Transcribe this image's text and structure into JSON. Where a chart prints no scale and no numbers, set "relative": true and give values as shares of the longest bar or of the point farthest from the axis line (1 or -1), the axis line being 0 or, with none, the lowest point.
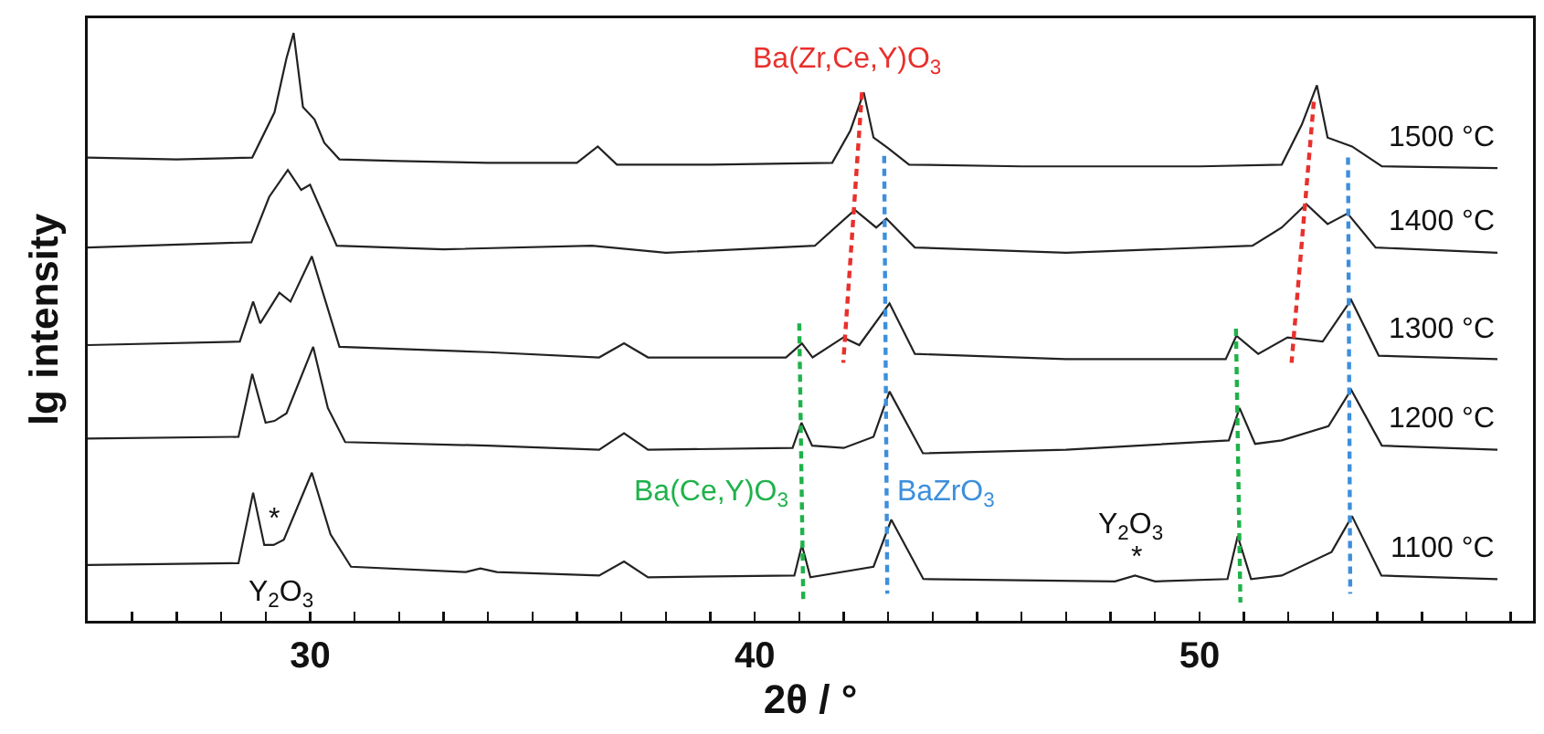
{
  "chart_data": {
    "type": "line",
    "relative": true,
    "xlabel": "2θ / °",
    "ylabel": "lg intensity",
    "xlim": [
      25,
      57.5
    ],
    "xticks": [
      {
        "value": 26,
        "label": null
      },
      {
        "value": 27,
        "label": null
      },
      {
        "value": 28,
        "label": null
      },
      {
        "value": 29,
        "label": null
      },
      30,
      {
        "value": 31,
        "label": null
      },
      {
        "value": 32,
        "label": null
      },
      {
        "value": 33,
        "label": null
      },
      {
        "value": 34,
        "label": null
      },
      {
        "value": 35,
        "label": null
      },
      {
        "value": 36,
        "label": null
      },
      {
        "value": 37,
        "label": null
      },
      {
        "value": 38,
        "label": null
      },
      {
        "value": 39,
        "label": null
      },
      40,
      {
        "value": 41,
        "label": null
      },
      {
        "value": 42,
        "label": null
      },
      {
        "value": 43,
        "label": null
      },
      {
        "value": 44,
        "label": null
      },
      {
        "value": 45,
        "label": null
      },
      {
        "value": 46,
        "label": null
      },
      {
        "value": 47,
        "label": null
      },
      {
        "value": 48,
        "label": null
      },
      {
        "value": 49,
        "label": null
      },
      50,
      {
        "value": 51,
        "label": null
      },
      {
        "value": 52,
        "label": null
      },
      {
        "value": 53,
        "label": null
      },
      {
        "value": 54,
        "label": null
      },
      {
        "value": 55,
        "label": null
      },
      {
        "value": 56,
        "label": null
      },
      {
        "value": 57,
        "label": null
      }
    ],
    "grid": false,
    "legend": false,
    "marker": "none",
    "line_style": "solid",
    "series": [
      {
        "name": "1500 °C",
        "color": "#222222",
        "x": [
          25,
          27,
          28.7,
          29.2,
          29.47,
          29.63,
          29.84,
          30.1,
          30.32,
          30.66,
          32,
          34,
          36,
          36.47,
          36.9,
          39,
          41.74,
          42.15,
          42.45,
          42.67,
          43,
          43.47,
          46,
          50,
          51.85,
          52.3,
          52.64,
          52.88,
          53.43,
          54.1,
          56.7
        ],
        "values": [
          0.788,
          0.785,
          0.788,
          0.865,
          0.957,
          1.0,
          0.874,
          0.853,
          0.813,
          0.785,
          0.782,
          0.779,
          0.779,
          0.807,
          0.776,
          0.776,
          0.779,
          0.834,
          0.899,
          0.822,
          0.804,
          0.776,
          0.773,
          0.773,
          0.776,
          0.844,
          0.911,
          0.822,
          0.807,
          0.773,
          0.77
        ]
      },
      {
        "name": "1400 °C",
        "color": "#222222",
        "x": [
          25,
          28.68,
          29.08,
          29.5,
          29.8,
          30,
          30.6,
          33,
          36.34,
          38,
          41.35,
          42.25,
          42.73,
          42.96,
          43.6,
          47,
          51.19,
          51.85,
          52.4,
          52.88,
          53.33,
          53.96,
          56.7
        ],
        "values": [
          0.635,
          0.644,
          0.721,
          0.767,
          0.733,
          0.742,
          0.638,
          0.632,
          0.638,
          0.626,
          0.638,
          0.699,
          0.669,
          0.684,
          0.635,
          0.626,
          0.638,
          0.669,
          0.709,
          0.675,
          0.693,
          0.635,
          0.626
        ]
      },
      {
        "name": "1300 °C",
        "color": "#222222",
        "x": [
          25,
          28.42,
          28.72,
          28.88,
          29.31,
          29.56,
          30.04,
          30.66,
          34,
          36.5,
          37.06,
          37.6,
          40.7,
          41.06,
          41.3,
          41.99,
          42.35,
          43.03,
          43.6,
          47,
          50.59,
          50.83,
          51.32,
          51.98,
          52.77,
          53.41,
          54.03,
          56.7
        ],
        "values": [
          0.469,
          0.475,
          0.543,
          0.506,
          0.558,
          0.543,
          0.62,
          0.466,
          0.457,
          0.448,
          0.472,
          0.448,
          0.448,
          0.472,
          0.448,
          0.482,
          0.469,
          0.54,
          0.454,
          0.445,
          0.445,
          0.485,
          0.454,
          0.482,
          0.475,
          0.546,
          0.451,
          0.445
        ]
      },
      {
        "name": "1200 °C",
        "color": "#222222",
        "x": [
          25,
          28.39,
          28.7,
          29,
          29.2,
          29.47,
          30.07,
          30.4,
          30.79,
          34,
          36.5,
          37.06,
          37.6,
          40.85,
          41.05,
          41.29,
          42,
          42.67,
          43.03,
          43.78,
          47,
          50.66,
          50.9,
          51.25,
          51.85,
          52.9,
          53.41,
          54.1,
          56.7
        ],
        "values": [
          0.31,
          0.313,
          0.42,
          0.337,
          0.34,
          0.353,
          0.466,
          0.362,
          0.304,
          0.298,
          0.291,
          0.319,
          0.291,
          0.294,
          0.337,
          0.298,
          0.294,
          0.313,
          0.39,
          0.285,
          0.291,
          0.307,
          0.362,
          0.301,
          0.307,
          0.331,
          0.393,
          0.298,
          0.291
        ]
      },
      {
        "name": "1100 °C",
        "color": "#222222",
        "x": [
          25,
          28.39,
          28.72,
          28.97,
          29.18,
          29.41,
          30.04,
          30.46,
          30.92,
          33.5,
          33.83,
          34.2,
          36.5,
          37.06,
          37.6,
          40.89,
          41.06,
          41.25,
          42.67,
          43.07,
          43.79,
          48.1,
          48.55,
          49,
          50.63,
          50.86,
          51.16,
          51.85,
          52.97,
          53.43,
          54.09,
          56.7
        ],
        "values": [
          0.095,
          0.098,
          0.218,
          0.129,
          0.129,
          0.138,
          0.252,
          0.147,
          0.092,
          0.083,
          0.089,
          0.083,
          0.077,
          0.101,
          0.074,
          0.077,
          0.129,
          0.074,
          0.092,
          0.172,
          0.071,
          0.067,
          0.077,
          0.067,
          0.071,
          0.144,
          0.071,
          0.077,
          0.117,
          0.178,
          0.077,
          0.071
        ]
      },
      {
        "name": "Ba(Zr,Ce,Y)O$_{3}$",
        "color": "#e8302c",
        "line_style": "dashed",
        "x": [
          42.41,
          41.99
        ],
        "values": [
          0.899,
          0.439
        ]
      },
      {
        "color": "#e8302c",
        "line_style": "dashed",
        "x": [
          52.57,
          52.07
        ],
        "values": [
          0.883,
          0.439
        ]
      },
      {
        "name": "Ba(Ce,Y)O$_{3}$",
        "color": "#1fb24a",
        "line_style": "dashed",
        "x": [
          41.0,
          41.09
        ],
        "values": [
          0.506,
          0.037
        ]
      },
      {
        "color": "#1fb24a",
        "line_style": "dashed",
        "x": [
          50.82,
          50.92
        ],
        "values": [
          0.497,
          0.031
        ]
      },
      {
        "name": "BaZrO$_{3}$",
        "color": "#3d8fdc",
        "line_style": "dashed",
        "x": [
          42.91,
          42.98
        ],
        "values": [
          0.791,
          0.046
        ]
      },
      {
        "color": "#3d8fdc",
        "line_style": "dashed",
        "x": [
          53.34,
          53.39
        ],
        "values": [
          0.788,
          0.046
        ]
      }
    ],
    "annotations": [
      "Y$_{2}$O$_{3}$",
      "*",
      "Y$_{2}$O$_{3}$",
      "*"
    ]
  }
}
